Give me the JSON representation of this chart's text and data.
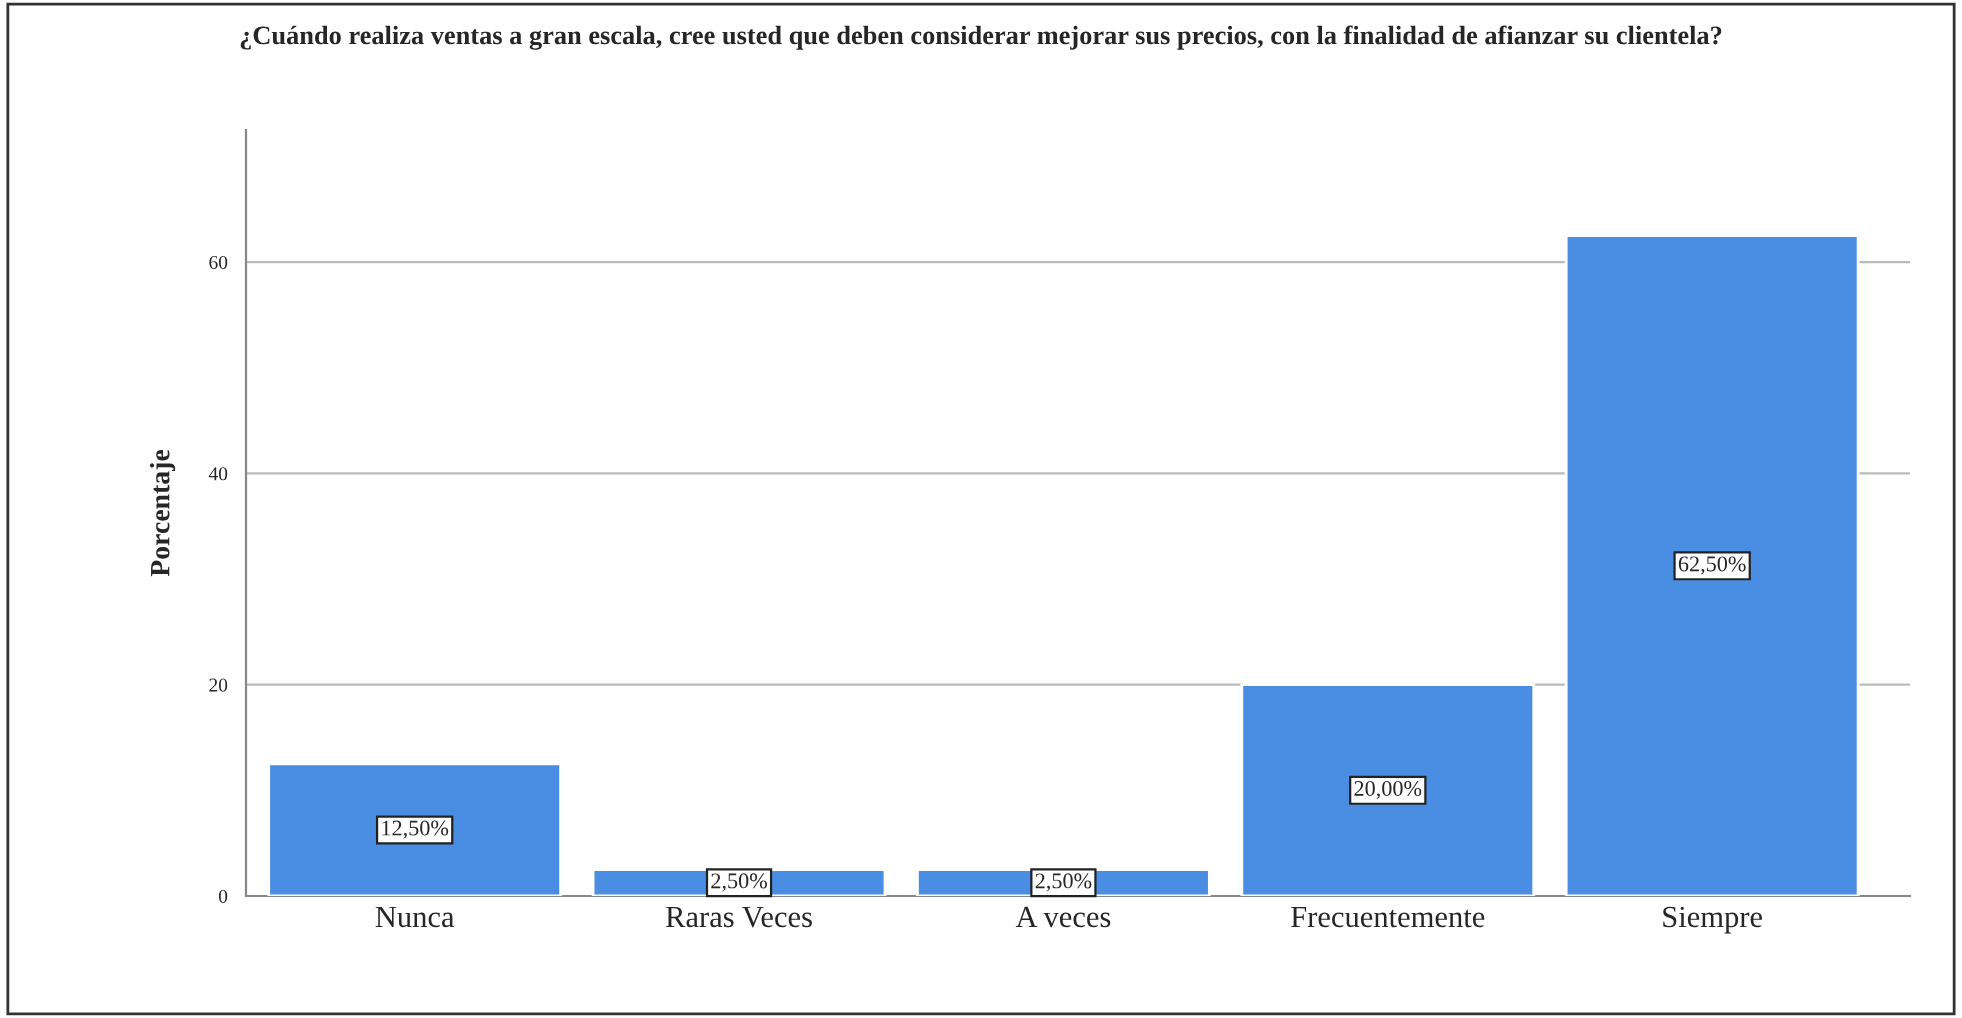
{
  "chart_data": {
    "type": "bar",
    "title": "¿Cuándo realiza ventas a gran escala, cree usted que deben considerar mejorar sus precios, con la finalidad de afianzar su clientela?",
    "ylabel": "Porcentaje",
    "categories": [
      "Nunca",
      "Raras Veces",
      "A veces",
      "Frecuentemente",
      "Siempre"
    ],
    "values": [
      12.5,
      2.5,
      2.5,
      20.0,
      62.5
    ],
    "value_labels": [
      "12,50%",
      "2,50%",
      "2,50%",
      "20,00%",
      "62,50%"
    ],
    "color": "#4a8ee3",
    "ylim": [
      0,
      72.5
    ],
    "yticks": [
      0,
      20,
      40,
      60
    ],
    "grid": "y"
  }
}
